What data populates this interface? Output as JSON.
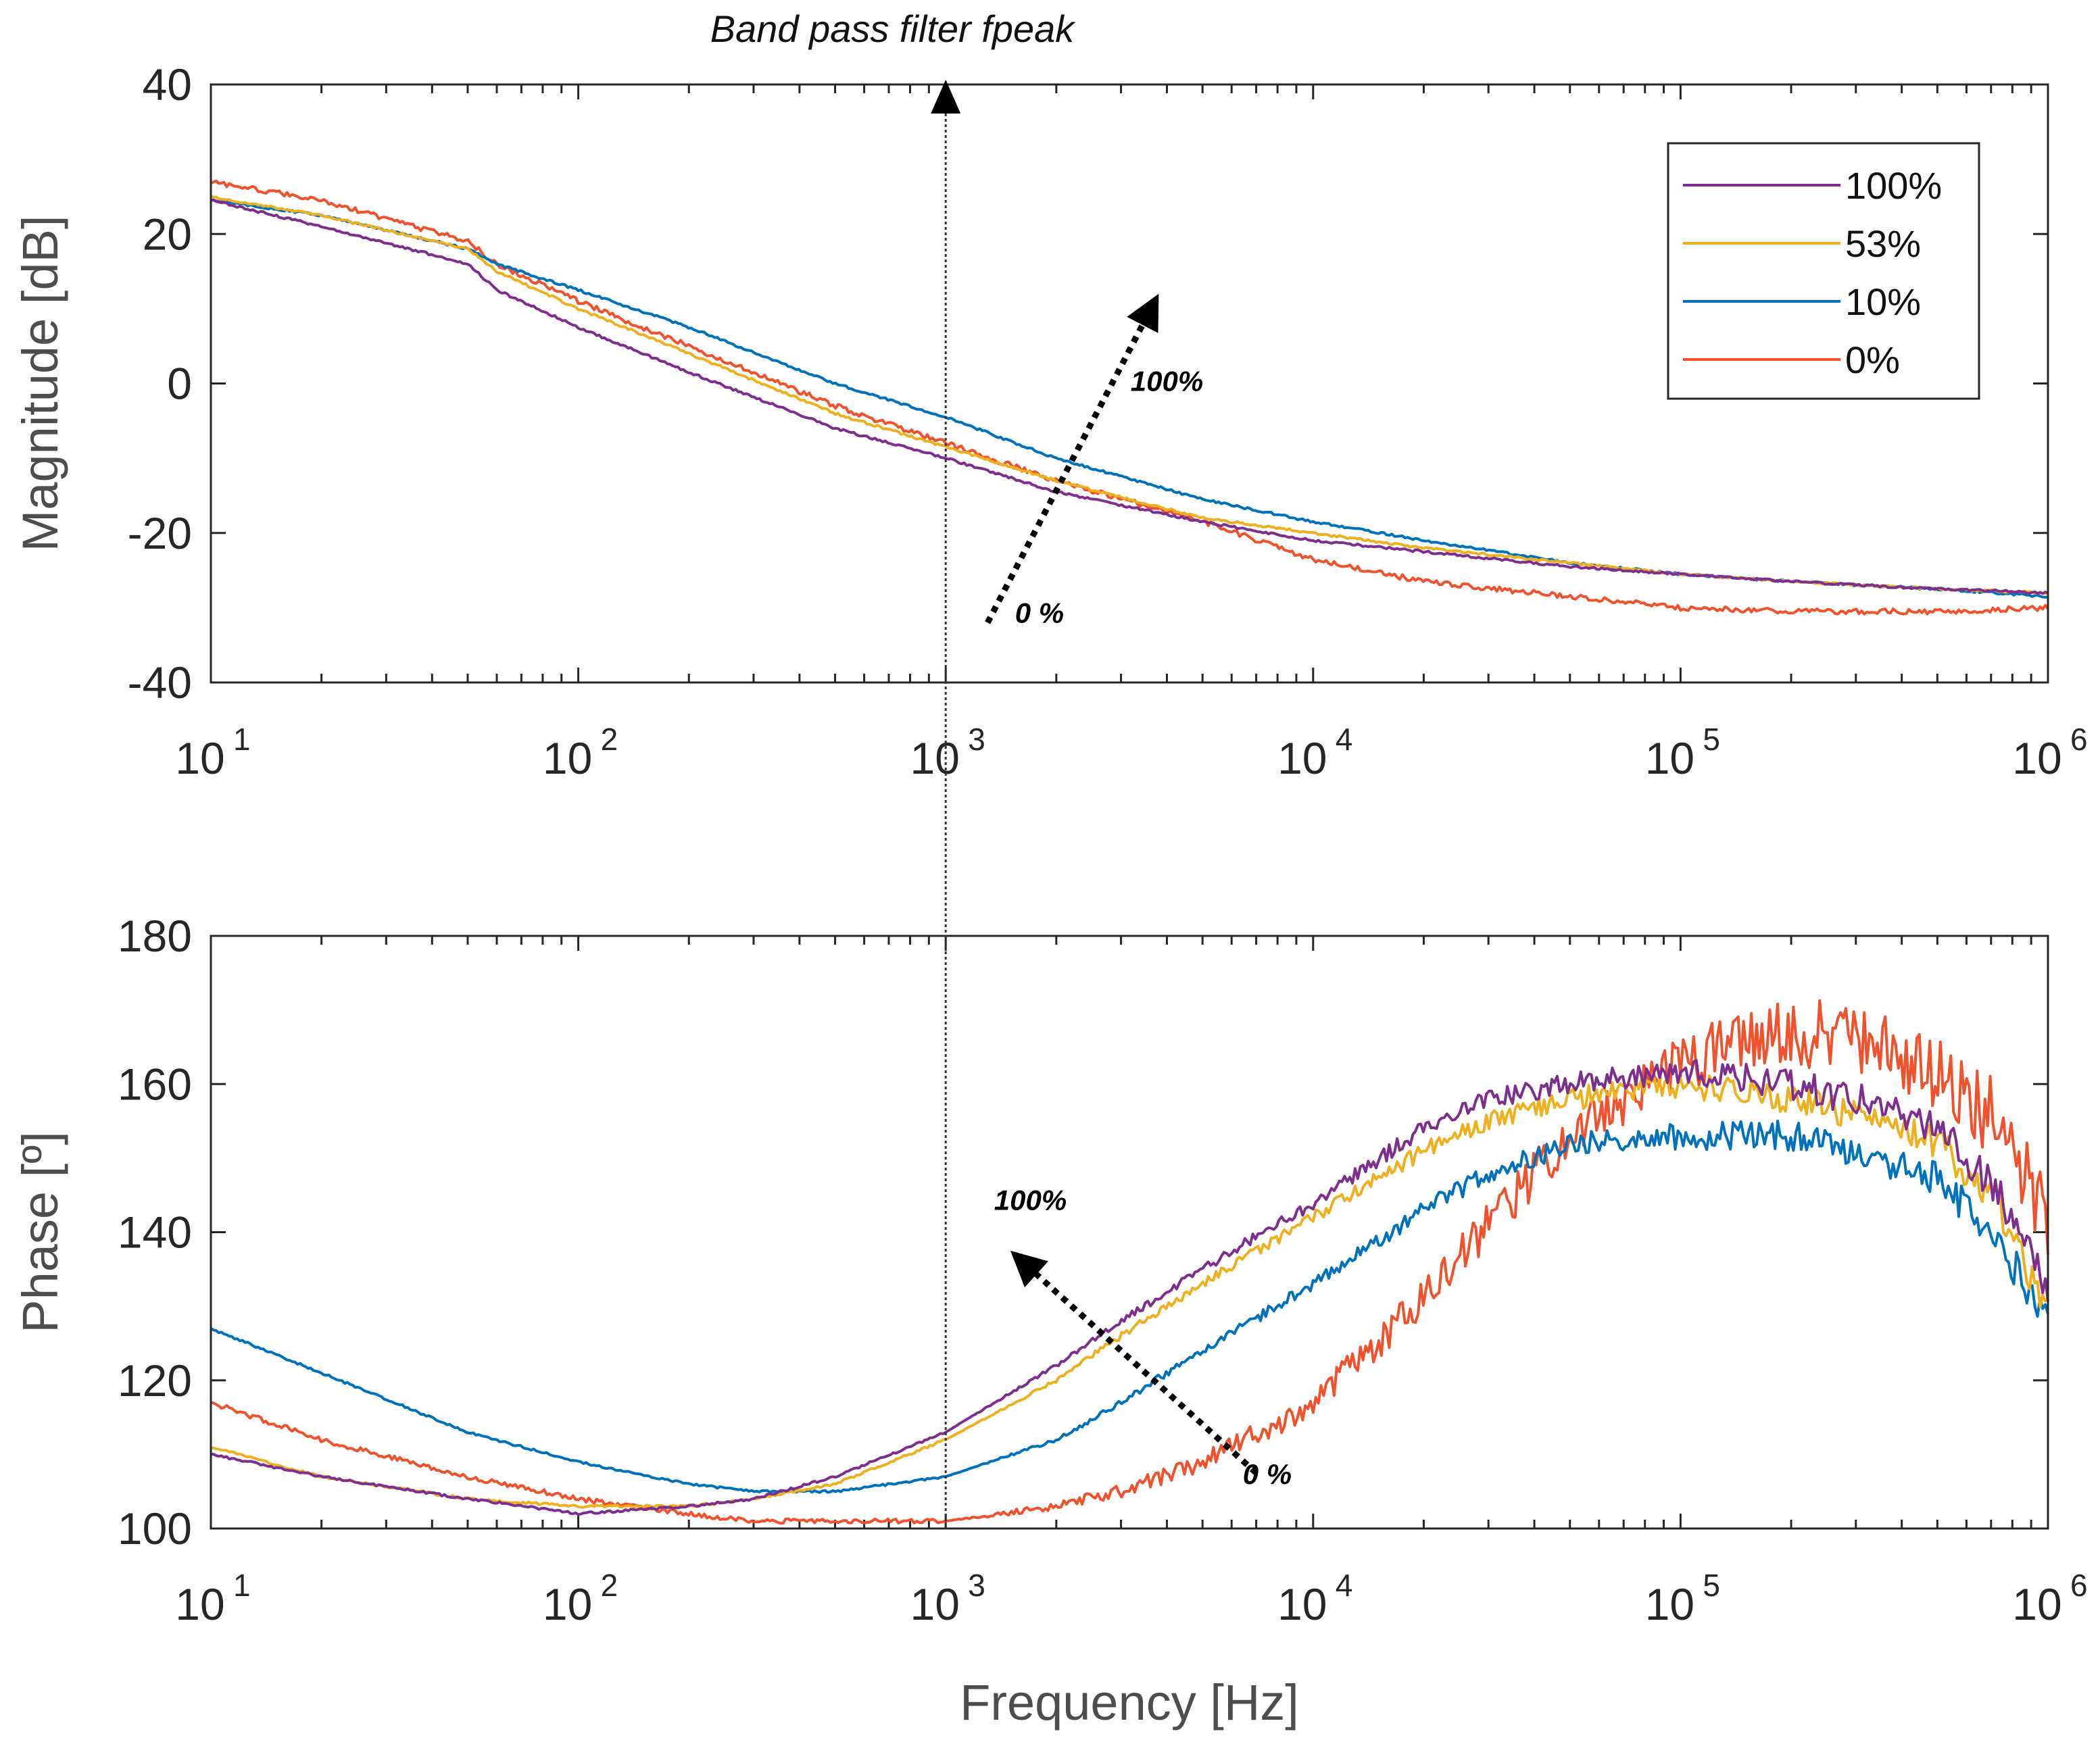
{
  "figure_title": "Band pass filter fpeak",
  "colors": {
    "100%": "#7E2F8E",
    "53%": "#EDB120",
    "10%": "#0072BD",
    "0%": "#F0522E",
    "axis": "#262626",
    "grid": "#e0e0e0"
  },
  "legend": [
    "100%",
    "53%",
    "10%",
    "0%"
  ],
  "chart_data": [
    {
      "type": "line",
      "name": "magnitude",
      "title": "",
      "xlabel": "",
      "ylabel": "Magnitude [dB]",
      "xscale": "log",
      "xlim": [
        10,
        1000000
      ],
      "ylim": [
        -40,
        40
      ],
      "yticks": [
        -40,
        -20,
        0,
        20,
        40
      ],
      "ytick_labels": [
        "-40",
        "-20",
        "0",
        "20",
        "40"
      ],
      "xtick_base": "10",
      "xtick_exponents": [
        "1",
        "2",
        "3",
        "4",
        "5",
        "6"
      ],
      "x": [
        10,
        20,
        50,
        60,
        100,
        200,
        500,
        1000,
        2000,
        5000,
        10000,
        20000,
        50000,
        100000,
        200000,
        500000,
        1000000
      ],
      "series": [
        {
          "name": "100%",
          "values": [
            24.5,
            21,
            16,
            12.5,
            7.5,
            1.5,
            -6,
            -10,
            -14.5,
            -18.5,
            -21,
            -22.5,
            -24.5,
            -25.5,
            -26.5,
            -27.5,
            -28
          ]
        },
        {
          "name": "53%",
          "values": [
            25,
            22.5,
            18,
            15,
            10,
            4,
            -4,
            -8.5,
            -13,
            -18,
            -20,
            -22,
            -24,
            -25.5,
            -26.5,
            -27.5,
            -28
          ]
        },
        {
          "name": "10%",
          "values": [
            24.5,
            22.5,
            18,
            16,
            12.5,
            7.5,
            0,
            -4.5,
            -10,
            -15.5,
            -18.5,
            -21,
            -24,
            -25.5,
            -26.5,
            -27.5,
            -28.5
          ]
        },
        {
          "name": "0%",
          "values": [
            27,
            24.5,
            19,
            16,
            11,
            5,
            -3,
            -8,
            -13,
            -18.5,
            -23.5,
            -26.5,
            -28.5,
            -30,
            -30.5,
            -30.5,
            -30
          ]
        }
      ],
      "annotation_line_x": 1000,
      "annotations": [
        {
          "text": "100%",
          "x": 4000,
          "y": -1
        },
        {
          "text": "0 %",
          "x": 1800,
          "y": -32
        }
      ],
      "arrow": {
        "from": [
          1300,
          -32
        ],
        "to": [
          3800,
          12
        ]
      }
    },
    {
      "type": "line",
      "name": "phase",
      "title": "",
      "xlabel": "Frequency [Hz]",
      "ylabel": "Phase [º]",
      "xscale": "log",
      "xlim": [
        10,
        1000000
      ],
      "ylim": [
        100,
        180
      ],
      "yticks": [
        100,
        120,
        140,
        160,
        180
      ],
      "ytick_labels": [
        "100",
        "120",
        "140",
        "160",
        "180"
      ],
      "xtick_base": "10",
      "xtick_exponents": [
        "1",
        "2",
        "3",
        "4",
        "5",
        "6"
      ],
      "x": [
        10,
        20,
        50,
        100,
        200,
        300,
        500,
        1000,
        2000,
        3000,
        5000,
        10000,
        20000,
        30000,
        50000,
        100000,
        200000,
        300000,
        500000,
        700000,
        1000000
      ],
      "series": [
        {
          "name": "100%",
          "values": [
            110,
            107,
            104,
            102,
            103,
            104,
            107,
            113,
            122,
            128,
            135,
            144,
            154,
            158,
            160,
            162,
            160,
            158,
            154,
            147,
            132
          ]
        },
        {
          "name": "53%",
          "values": [
            111,
            107,
            104,
            103,
            103,
            104,
            106,
            112,
            120,
            126,
            133,
            142,
            151,
            155,
            158,
            160,
            158,
            156,
            152,
            145,
            130
          ]
        },
        {
          "name": "10%",
          "values": [
            127,
            121,
            113,
            109,
            106,
            105,
            105,
            107,
            112,
            117,
            124,
            133,
            143,
            148,
            152,
            153,
            153,
            151,
            147,
            140,
            129
          ]
        },
        {
          "name": "0%",
          "values": [
            117,
            112,
            107,
            104,
            102,
            101,
            101,
            101,
            103,
            105,
            109,
            117,
            131,
            141,
            153,
            163,
            167,
            166,
            162,
            156,
            141
          ]
        }
      ],
      "annotation_line_x": 1000,
      "annotations": [
        {
          "text": "100%",
          "x": 1700,
          "y": 143
        },
        {
          "text": "0 %",
          "x": 7500,
          "y": 106
        }
      ],
      "arrow": {
        "from": [
          7000,
          107.5
        ],
        "to": [
          1500,
          137.5
        ]
      }
    }
  ]
}
